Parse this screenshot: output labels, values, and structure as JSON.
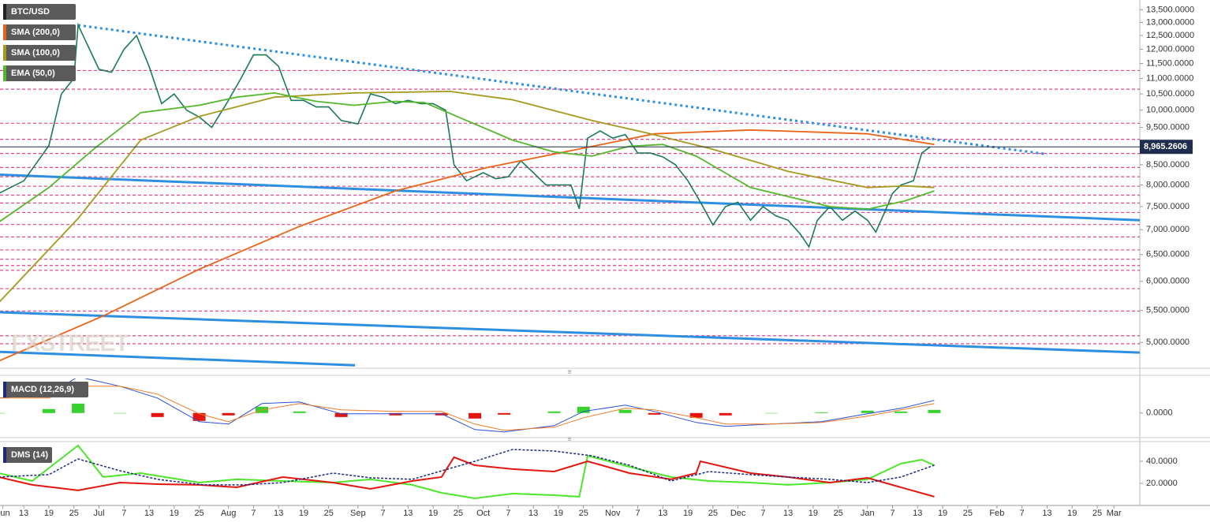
{
  "chart_data": [
    {
      "type": "line",
      "title": "BTC/USD",
      "log_scale": true,
      "xlim": [
        6.3,
        279.2
      ],
      "ylim": [
        4650,
        13900
      ],
      "yticks": [
        {
          "value": 5000,
          "label": "5,000.0000"
        },
        {
          "value": 5500,
          "label": "5,500.0000"
        },
        {
          "value": 6000,
          "label": "6,000.0000"
        },
        {
          "value": 6500,
          "label": "6,500.0000"
        },
        {
          "value": 7000,
          "label": "7,000.0000"
        },
        {
          "value": 7500,
          "label": "7,500.0000"
        },
        {
          "value": 8000,
          "label": "8,000.0000"
        },
        {
          "value": 8500,
          "label": "8,500.0000"
        },
        {
          "value": 9500,
          "label": "9,500.0000"
        },
        {
          "value": 10000,
          "label": "10,000.0000"
        },
        {
          "value": 10500,
          "label": "10,500.0000"
        },
        {
          "value": 11000,
          "label": "11,000.0000"
        },
        {
          "value": 11500,
          "label": "11,500.0000"
        },
        {
          "value": 12000,
          "label": "12,000.0000"
        },
        {
          "value": 12500,
          "label": "12,500.0000"
        },
        {
          "value": 13000,
          "label": "13,000.0000"
        },
        {
          "value": 13500,
          "label": "13,500.0000"
        }
      ],
      "current_price": {
        "value": 8965.2606,
        "label": "8,965.2606"
      },
      "watermark": "FXSTREET",
      "series": [
        {
          "color": "#1b7a5a",
          "x": [
            6,
            12,
            18,
            21,
            24,
            25,
            30,
            33,
            36,
            39,
            42,
            45,
            48,
            51,
            54,
            57,
            61,
            64,
            67,
            70,
            73,
            76,
            79,
            82,
            85,
            88,
            92,
            95,
            98,
            101,
            104,
            107,
            110,
            113,
            115,
            118,
            122,
            125,
            128,
            131,
            134,
            137,
            140,
            143,
            145,
            147,
            150,
            153,
            156,
            159,
            162,
            165,
            168,
            171,
            174,
            177,
            180,
            183,
            186,
            189,
            192,
            195,
            198,
            200,
            202,
            205,
            208,
            211,
            214,
            216,
            218,
            220,
            222,
            225,
            227,
            229
          ],
          "values": [
            7800,
            8100,
            9000,
            10500,
            11000,
            12900,
            11300,
            11200,
            12000,
            12500,
            11400,
            10200,
            10500,
            10000,
            9800,
            9500,
            10300,
            11000,
            11800,
            11800,
            11400,
            10300,
            10300,
            10100,
            10100,
            9700,
            9600,
            10500,
            10400,
            10200,
            10300,
            10200,
            10200,
            10000,
            8500,
            8100,
            8300,
            8150,
            8200,
            8600,
            8300,
            8000,
            8000,
            8000,
            7450,
            9200,
            9400,
            9200,
            9300,
            8800,
            8800,
            8700,
            8500,
            8100,
            7600,
            7100,
            7500,
            7600,
            7200,
            7500,
            7300,
            7200,
            6900,
            6650,
            7200,
            7500,
            7200,
            7400,
            7200,
            6950,
            7350,
            7800,
            8000,
            8100,
            8800,
            8965
          ]
        },
        {
          "name": "SMA (200,0)",
          "color": "#e8651a",
          "x": [
            6,
            31,
            54,
            78,
            101,
            123,
            146,
            163,
            186,
            214,
            230
          ],
          "values": [
            4730,
            5410,
            6220,
            7070,
            7860,
            8430,
            8930,
            9320,
            9430,
            9320,
            9030
          ]
        },
        {
          "name": "SMA (100,0)",
          "color": "#a59a1e",
          "x": [
            6,
            25,
            40,
            54,
            72,
            91,
            114,
            129,
            148,
            161,
            176,
            195,
            214,
            223,
            230
          ],
          "values": [
            5630,
            7240,
            9150,
            9820,
            10400,
            10530,
            10580,
            10320,
            9700,
            9350,
            8930,
            8330,
            7940,
            7980,
            7940
          ]
        },
        {
          "name": "EMA (50,0)",
          "color": "#55b82c",
          "x": [
            6,
            18,
            29,
            40,
            54,
            63,
            72,
            82,
            91,
            101,
            108,
            118,
            129,
            139,
            148,
            157,
            165,
            173,
            186,
            205,
            214,
            223,
            230
          ],
          "values": [
            7160,
            7940,
            8930,
            9930,
            10150,
            10400,
            10530,
            10270,
            10150,
            10270,
            10230,
            9700,
            9150,
            8830,
            8720,
            8980,
            9030,
            8720,
            7940,
            7500,
            7440,
            7630,
            7860
          ]
        }
      ],
      "levels": [
        11260,
        10650,
        9620,
        9170,
        8790,
        8430,
        8200,
        7970,
        7760,
        7580,
        7370,
        7110,
        6850,
        6590,
        6410,
        6290,
        6200,
        5870,
        5490,
        5100,
        4980
      ],
      "level_color": "#e8408a",
      "trendlines": [
        {
          "color": "#2e8fe0",
          "dash": true,
          "x": [
            25,
            257
          ],
          "values": [
            12890,
            8770
          ]
        },
        {
          "color": "#2e8fe0",
          "dash": false,
          "x": [
            6.3,
            279.2
          ],
          "values": [
            8250,
            7200
          ]
        },
        {
          "color": "#2e8fe0",
          "dash": false,
          "x": [
            6.3,
            279.2
          ],
          "values": [
            5470,
            4850
          ]
        },
        {
          "color": "#2e8fe0",
          "dash": false,
          "x": [
            6.3,
            91.3
          ],
          "values": [
            4860,
            4670
          ]
        }
      ]
    },
    {
      "type": "macd",
      "title": "MACD (12,26,9)",
      "xlim": [
        6.3,
        279.2
      ],
      "ylim": [
        -400,
        600
      ],
      "yticks": [
        {
          "value": 0,
          "label": "0.0000"
        }
      ],
      "series": [
        {
          "color": "#2a4fd6",
          "x": [
            6,
            18,
            25,
            35,
            44,
            54,
            61,
            69,
            78,
            88,
            101,
            112,
            120,
            127,
            139,
            146,
            156,
            163,
            173,
            180,
            191,
            203,
            214,
            222,
            230
          ],
          "values": [
            260,
            329,
            630,
            466,
            260,
            -151,
            -192,
            164,
            192,
            -14,
            -14,
            -14,
            -288,
            -329,
            -219,
            27,
            137,
            27,
            -164,
            -233,
            -192,
            -151,
            -14,
            82,
            219
          ]
        },
        {
          "color": "#f07a26",
          "x": [
            6,
            18,
            25,
            35,
            44,
            54,
            61,
            69,
            78,
            88,
            101,
            112,
            120,
            127,
            139,
            146,
            156,
            163,
            173,
            180,
            191,
            203,
            214,
            222,
            230
          ],
          "values": [
            260,
            260,
            466,
            466,
            329,
            -14,
            -151,
            55,
            164,
            55,
            27,
            27,
            -192,
            -301,
            -247,
            -82,
            82,
            55,
            -82,
            -192,
            -192,
            -164,
            -55,
            55,
            164
          ]
        }
      ],
      "histogram": {
        "positive_color": "#38d22e",
        "negative_color": "#e3160f",
        "x": [
          6,
          18,
          25,
          35,
          44,
          54,
          61,
          69,
          78,
          88,
          101,
          112,
          120,
          127,
          139,
          146,
          156,
          163,
          173,
          180,
          191,
          203,
          214,
          222,
          230
        ],
        "values": [
          0,
          69,
          164,
          0,
          -69,
          -137,
          -41,
          109,
          28,
          -69,
          -41,
          -41,
          -96,
          -28,
          28,
          109,
          55,
          -28,
          -82,
          -41,
          0,
          13,
          41,
          27,
          55
        ]
      }
    },
    {
      "type": "dms",
      "title": "DMS (14)",
      "xlim": [
        6.3,
        279.2
      ],
      "ylim": [
        0.7,
        55.7
      ],
      "yticks": [
        {
          "value": 20,
          "label": "20.0000"
        },
        {
          "value": 40,
          "label": "40.0000"
        }
      ],
      "xticks": [
        {
          "value": 7,
          "label": "Jun"
        },
        {
          "value": 12,
          "label": "13"
        },
        {
          "value": 18,
          "label": "19"
        },
        {
          "value": 24,
          "label": "25"
        },
        {
          "value": 30,
          "label": "Jul"
        },
        {
          "value": 36,
          "label": "7"
        },
        {
          "value": 42,
          "label": "13"
        },
        {
          "value": 48,
          "label": "19"
        },
        {
          "value": 54,
          "label": "25"
        },
        {
          "value": 61,
          "label": "Aug"
        },
        {
          "value": 67,
          "label": "7"
        },
        {
          "value": 73,
          "label": "13"
        },
        {
          "value": 79,
          "label": "19"
        },
        {
          "value": 85,
          "label": "25"
        },
        {
          "value": 92,
          "label": "Sep"
        },
        {
          "value": 98,
          "label": "7"
        },
        {
          "value": 104,
          "label": "13"
        },
        {
          "value": 110,
          "label": "19"
        },
        {
          "value": 116,
          "label": "25"
        },
        {
          "value": 122,
          "label": "Oct"
        },
        {
          "value": 128,
          "label": "7"
        },
        {
          "value": 134,
          "label": "13"
        },
        {
          "value": 140,
          "label": "19"
        },
        {
          "value": 146,
          "label": "25"
        },
        {
          "value": 153,
          "label": "Nov"
        },
        {
          "value": 159,
          "label": "7"
        },
        {
          "value": 165,
          "label": "13"
        },
        {
          "value": 171,
          "label": "19"
        },
        {
          "value": 177,
          "label": "25"
        },
        {
          "value": 183,
          "label": "Dec"
        },
        {
          "value": 189,
          "label": "7"
        },
        {
          "value": 195,
          "label": "13"
        },
        {
          "value": 201,
          "label": "19"
        },
        {
          "value": 207,
          "label": "25"
        },
        {
          "value": 214,
          "label": "Jan"
        },
        {
          "value": 220,
          "label": "7"
        },
        {
          "value": 226,
          "label": "13"
        },
        {
          "value": 232,
          "label": "19"
        },
        {
          "value": 238,
          "label": "25"
        },
        {
          "value": 245,
          "label": "Feb"
        },
        {
          "value": 251,
          "label": "7"
        },
        {
          "value": 257,
          "label": "13"
        },
        {
          "value": 263,
          "label": "19"
        },
        {
          "value": 269,
          "label": "25"
        },
        {
          "value": 273,
          "label": "Mar"
        }
      ],
      "series": [
        {
          "color": "#4ee62a",
          "dash": false,
          "x": [
            6,
            14,
            25,
            31,
            40,
            54,
            63,
            74,
            86,
            95,
            105,
            112,
            120,
            129,
            139,
            145,
            147,
            157,
            167,
            176,
            186,
            195,
            205,
            214,
            222,
            227,
            230
          ],
          "values": [
            29.3,
            22.1,
            54.3,
            25.7,
            29.3,
            20.7,
            23.6,
            22.1,
            20.7,
            23.6,
            18.6,
            11.4,
            6.4,
            10.7,
            9.3,
            7.9,
            45,
            35,
            25.7,
            22.1,
            20.7,
            18.6,
            20.7,
            23.6,
            37.9,
            41.4,
            36.4
          ]
        },
        {
          "color": "#e3160f",
          "dash": false,
          "x": [
            6,
            14,
            25,
            35,
            44,
            54,
            63,
            74,
            86,
            95,
            105,
            112,
            115,
            120,
            129,
            139,
            147,
            157,
            167,
            173,
            174,
            186,
            195,
            205,
            214,
            222,
            230
          ],
          "values": [
            25.7,
            18.6,
            13.6,
            20.7,
            19.3,
            18.6,
            16.4,
            25.7,
            20.7,
            15,
            22.1,
            25.7,
            43.6,
            36.4,
            32.9,
            30.7,
            40,
            29.3,
            23.6,
            29.3,
            40,
            29.3,
            25.7,
            20.7,
            25,
            16.4,
            7.9
          ]
        },
        {
          "color": "#1c2a80",
          "dash": true,
          "x": [
            6,
            18,
            25,
            35,
            44,
            55,
            65,
            74,
            86,
            95,
            105,
            120,
            129,
            139,
            148,
            157,
            167,
            176,
            186,
            195,
            205,
            214,
            222,
            230
          ],
          "values": [
            25.7,
            27.9,
            42.1,
            31.4,
            23.6,
            18.6,
            18.6,
            20.7,
            29.3,
            25,
            23.6,
            40,
            50.7,
            49.3,
            45,
            36.4,
            22.1,
            30.7,
            27.9,
            25.7,
            23.6,
            20.7,
            25.7,
            36.4
          ]
        }
      ]
    }
  ]
}
